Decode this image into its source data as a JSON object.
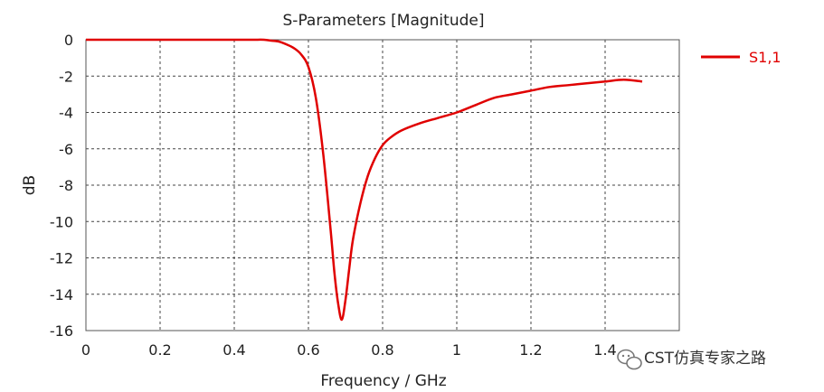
{
  "chart_data": {
    "type": "line",
    "title": "S-Parameters [Magnitude]",
    "xlabel": "Frequency / GHz",
    "ylabel": "dB",
    "xlim": [
      0,
      1.6
    ],
    "ylim": [
      -16,
      0
    ],
    "xticks": [
      0,
      0.2,
      0.4,
      0.6,
      0.8,
      1,
      1.2,
      1.4
    ],
    "xtick_labels": [
      "0",
      "0.2",
      "0.4",
      "0.6",
      "0.8",
      "1",
      "1.2",
      "1.4"
    ],
    "yticks": [
      0,
      -2,
      -4,
      -6,
      -8,
      -10,
      -12,
      -14,
      -16
    ],
    "ytick_labels": [
      "0",
      "-2",
      "-4",
      "-6",
      "-8",
      "-10",
      "-12",
      "-14",
      "-16"
    ],
    "grid": true,
    "legend_position": "right",
    "series": [
      {
        "name": "S1,1",
        "color": "#e00000",
        "x": [
          0,
          0.1,
          0.2,
          0.3,
          0.4,
          0.45,
          0.48,
          0.5,
          0.52,
          0.54,
          0.56,
          0.58,
          0.6,
          0.62,
          0.64,
          0.66,
          0.67,
          0.68,
          0.69,
          0.7,
          0.71,
          0.72,
          0.74,
          0.76,
          0.78,
          0.8,
          0.82,
          0.85,
          0.9,
          0.95,
          1.0,
          1.05,
          1.1,
          1.15,
          1.2,
          1.25,
          1.3,
          1.35,
          1.4,
          1.45,
          1.5
        ],
        "y": [
          0,
          0,
          0,
          0,
          0,
          0,
          0,
          -0.05,
          -0.1,
          -0.25,
          -0.45,
          -0.8,
          -1.5,
          -3.2,
          -6.3,
          -10.5,
          -12.8,
          -14.5,
          -15.4,
          -14.3,
          -12.6,
          -11.0,
          -9.0,
          -7.5,
          -6.5,
          -5.8,
          -5.4,
          -5.0,
          -4.6,
          -4.3,
          -4.0,
          -3.6,
          -3.2,
          -3.0,
          -2.8,
          -2.6,
          -2.5,
          -2.4,
          -2.3,
          -2.2,
          -2.3
        ]
      }
    ]
  },
  "watermark": {
    "text": "CST仿真专家之路",
    "icon": "wechat-icon"
  }
}
